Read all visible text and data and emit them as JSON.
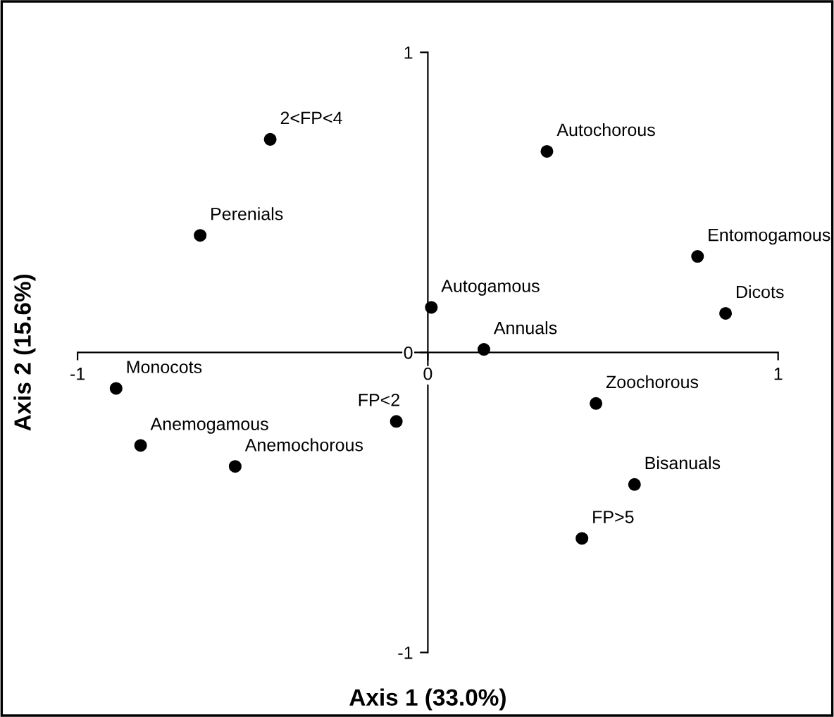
{
  "chart_data": {
    "type": "scatter",
    "xlabel": "Axis 1 (33.0%)",
    "ylabel": "Axis 2 (15.6%)",
    "xlim": [
      -1,
      1
    ],
    "ylim": [
      -1,
      1
    ],
    "xticks": [
      -1,
      0,
      1
    ],
    "yticks": [
      -1,
      0,
      1
    ],
    "grid": false,
    "legend": false,
    "marker": "circle",
    "series": [
      {
        "color": "#000000",
        "x": [
          -0.45,
          -0.65,
          0.34,
          0.77,
          0.85,
          0.01,
          0.16,
          -0.89,
          -0.09,
          0.48,
          -0.82,
          -0.55,
          0.59,
          0.44
        ],
        "values": [
          0.71,
          0.39,
          0.67,
          0.32,
          0.13,
          0.15,
          0.01,
          -0.12,
          -0.23,
          -0.17,
          -0.31,
          -0.38,
          -0.44,
          -0.62
        ]
      }
    ],
    "annotations": [
      {
        "text": "2<FP<4",
        "x": -0.45,
        "y": 0.71
      },
      {
        "text": "Perenials",
        "x": -0.65,
        "y": 0.39
      },
      {
        "text": "Autochorous",
        "x": 0.34,
        "y": 0.67
      },
      {
        "text": "Entomogamous",
        "x": 0.77,
        "y": 0.32
      },
      {
        "text": "Dicots",
        "x": 0.85,
        "y": 0.13
      },
      {
        "text": "Autogamous",
        "x": 0.01,
        "y": 0.15
      },
      {
        "text": "Annuals",
        "x": 0.16,
        "y": 0.01
      },
      {
        "text": "Monocots",
        "x": -0.89,
        "y": -0.12
      },
      {
        "text": "FP<2",
        "x": -0.09,
        "y": -0.23
      },
      {
        "text": "Zoochorous",
        "x": 0.48,
        "y": -0.17
      },
      {
        "text": "Anemogamous",
        "x": -0.82,
        "y": -0.31
      },
      {
        "text": "Anemochorous",
        "x": -0.55,
        "y": -0.38
      },
      {
        "text": "Bisanuals",
        "x": 0.59,
        "y": -0.44
      },
      {
        "text": "FP>5",
        "x": 0.44,
        "y": -0.62
      }
    ]
  }
}
